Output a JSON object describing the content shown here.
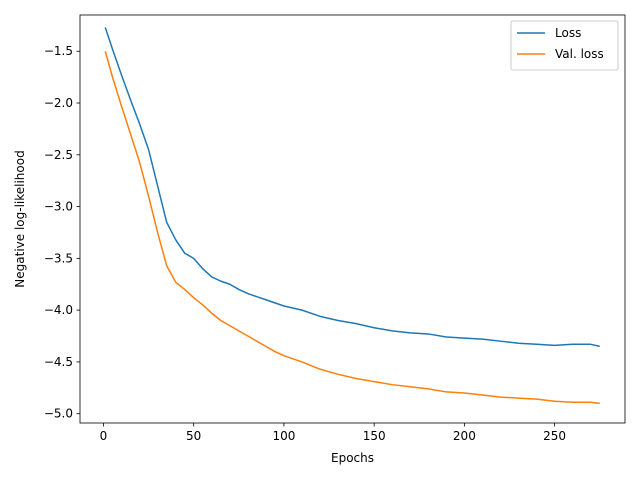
{
  "chart_data": {
    "type": "line",
    "title": "",
    "xlabel": "Epochs",
    "ylabel": "Negative log-likelihood",
    "xlim": [
      -13,
      289
    ],
    "ylim": [
      -5.09,
      -1.15
    ],
    "xticks": [
      0,
      50,
      100,
      150,
      200,
      250
    ],
    "xtick_labels": [
      "0",
      "50",
      "100",
      "150",
      "200",
      "250"
    ],
    "yticks": [
      -5.0,
      -4.5,
      -4.0,
      -3.5,
      -3.0,
      -2.5,
      -2.0,
      -1.5
    ],
    "ytick_labels": [
      "−5.0",
      "−4.5",
      "−4.0",
      "−3.5",
      "−3.0",
      "−2.5",
      "−2.0",
      "−1.5"
    ],
    "grid": false,
    "legend_position": "top-right",
    "series": [
      {
        "name": "Loss",
        "color": "#1f77b4",
        "x": [
          1,
          5,
          10,
          15,
          20,
          25,
          30,
          35,
          40,
          45,
          50,
          55,
          60,
          65,
          70,
          75,
          80,
          85,
          90,
          95,
          100,
          110,
          120,
          130,
          140,
          150,
          160,
          170,
          180,
          190,
          200,
          210,
          220,
          230,
          240,
          250,
          260,
          270,
          275
        ],
        "y": [
          -1.27,
          -1.48,
          -1.73,
          -1.97,
          -2.2,
          -2.45,
          -2.8,
          -3.15,
          -3.32,
          -3.45,
          -3.5,
          -3.6,
          -3.68,
          -3.72,
          -3.75,
          -3.8,
          -3.84,
          -3.87,
          -3.9,
          -3.93,
          -3.96,
          -4.0,
          -4.06,
          -4.1,
          -4.13,
          -4.17,
          -4.2,
          -4.22,
          -4.23,
          -4.26,
          -4.27,
          -4.28,
          -4.3,
          -4.32,
          -4.33,
          -4.34,
          -4.33,
          -4.33,
          -4.35
        ]
      },
      {
        "name": "Val. loss",
        "color": "#ff7f0e",
        "x": [
          1,
          5,
          10,
          15,
          20,
          25,
          30,
          35,
          40,
          45,
          50,
          55,
          60,
          65,
          70,
          75,
          80,
          85,
          90,
          95,
          100,
          110,
          120,
          130,
          140,
          150,
          160,
          170,
          180,
          190,
          200,
          210,
          220,
          230,
          240,
          250,
          260,
          270,
          275
        ],
        "y": [
          -1.5,
          -1.75,
          -2.03,
          -2.3,
          -2.57,
          -2.9,
          -3.25,
          -3.57,
          -3.73,
          -3.8,
          -3.88,
          -3.95,
          -4.03,
          -4.1,
          -4.15,
          -4.2,
          -4.25,
          -4.3,
          -4.35,
          -4.4,
          -4.44,
          -4.5,
          -4.57,
          -4.62,
          -4.66,
          -4.69,
          -4.72,
          -4.74,
          -4.76,
          -4.79,
          -4.8,
          -4.82,
          -4.84,
          -4.85,
          -4.86,
          -4.88,
          -4.89,
          -4.89,
          -4.9
        ]
      }
    ]
  }
}
